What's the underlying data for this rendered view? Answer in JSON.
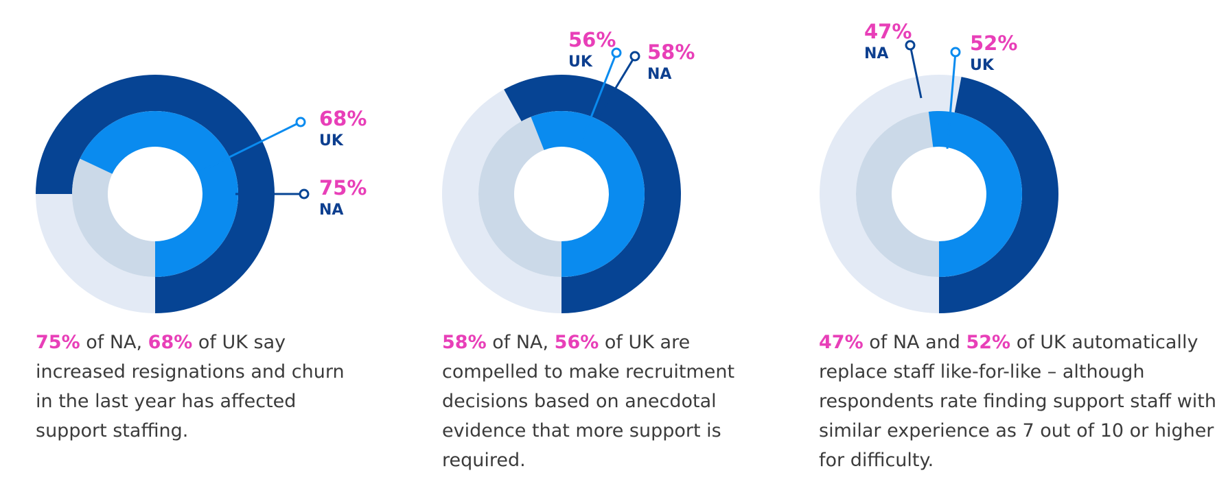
{
  "colors": {
    "na": "#064494",
    "na_track": "#e3eaf5",
    "uk": "#0a8bef",
    "uk_track": "#cbd9e8",
    "accent": "#e83fb8",
    "region_text": "#0d3f8f",
    "body_text": "#3b3b3b"
  },
  "chart_data": [
    {
      "type": "donut",
      "series": [
        {
          "name": "NA",
          "value": 75
        },
        {
          "name": "UK",
          "value": 68
        }
      ],
      "labels": [
        {
          "percent": "68%",
          "region": "UK"
        },
        {
          "percent": "75%",
          "region": "NA"
        }
      ],
      "caption": {
        "na_pct": "75%",
        "t1": " of NA, ",
        "uk_pct": "68%",
        "t2": " of UK say increased resignations and churn in the last year has affected support staffing."
      }
    },
    {
      "type": "donut",
      "series": [
        {
          "name": "NA",
          "value": 58
        },
        {
          "name": "UK",
          "value": 56
        }
      ],
      "labels": [
        {
          "percent": "56%",
          "region": "UK"
        },
        {
          "percent": "58%",
          "region": "NA"
        }
      ],
      "caption": {
        "na_pct": "58%",
        "t1": " of NA, ",
        "uk_pct": "56%",
        "t2": " of UK are compelled to make recruitment decisions based on anecdotal evidence that more support is required."
      }
    },
    {
      "type": "donut",
      "series": [
        {
          "name": "NA",
          "value": 47
        },
        {
          "name": "UK",
          "value": 52
        }
      ],
      "labels": [
        {
          "percent": "47%",
          "region": "NA"
        },
        {
          "percent": "52%",
          "region": "UK"
        }
      ],
      "caption": {
        "na_pct": "47%",
        "t1": " of NA and ",
        "uk_pct": "52%",
        "t2": " of UK automatically replace staff like-for-like – although respondents rate finding support staff with similar experience as 7 out of 10 or higher for difficulty."
      }
    }
  ]
}
